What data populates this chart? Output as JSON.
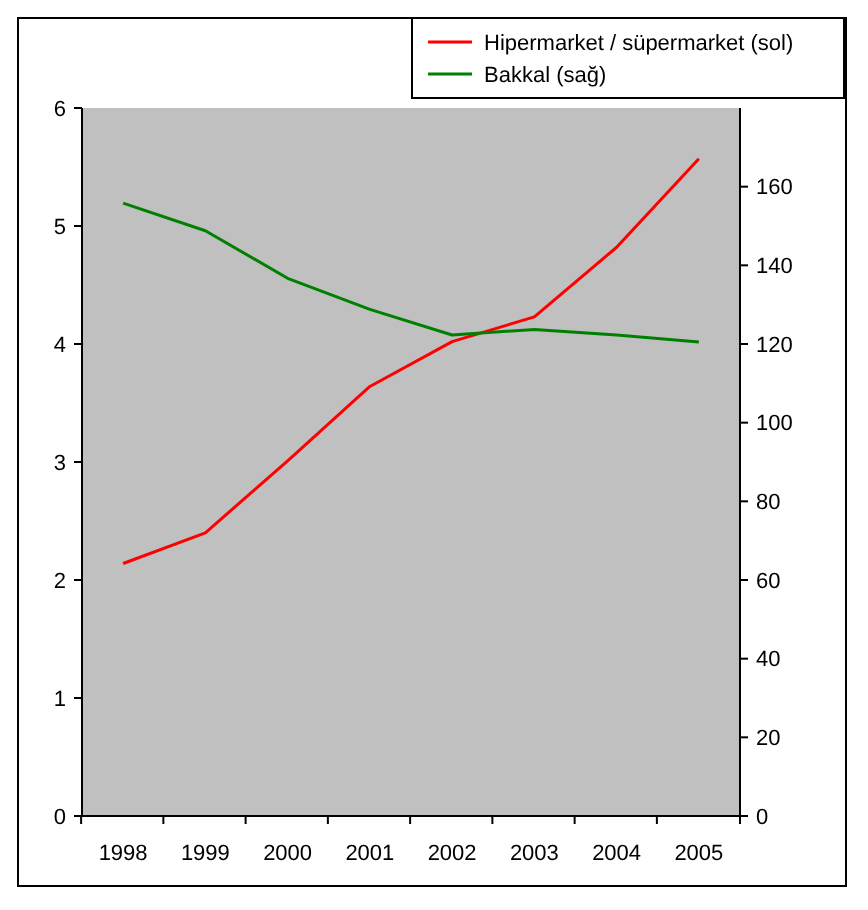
{
  "chart_data": {
    "type": "line",
    "categories": [
      "1998",
      "1999",
      "2000",
      "2001",
      "2002",
      "2003",
      "2004",
      "2005"
    ],
    "series": [
      {
        "name": "Hipermarket / süpermarket (sol)",
        "color": "#ff0000",
        "values": [
          2.14,
          2.4,
          3.01,
          3.64,
          4.02,
          4.23,
          4.82,
          5.57
        ]
      },
      {
        "name": "Bakkal (sağ)",
        "color": "#008000",
        "axis": "y2",
        "values": [
          155.8,
          148.8,
          136.7,
          128.8,
          122.3,
          123.7,
          122.3,
          120.5
        ]
      }
    ],
    "ylim": [
      0,
      6
    ],
    "yticks": [
      0,
      1,
      2,
      3,
      4,
      5,
      6
    ],
    "y2lim": [
      0,
      180
    ],
    "y2ticks": [
      0,
      20,
      40,
      60,
      80,
      100,
      120,
      140,
      160
    ],
    "legend": "top right",
    "grid": false,
    "marker": "none",
    "line_style": "solid"
  }
}
